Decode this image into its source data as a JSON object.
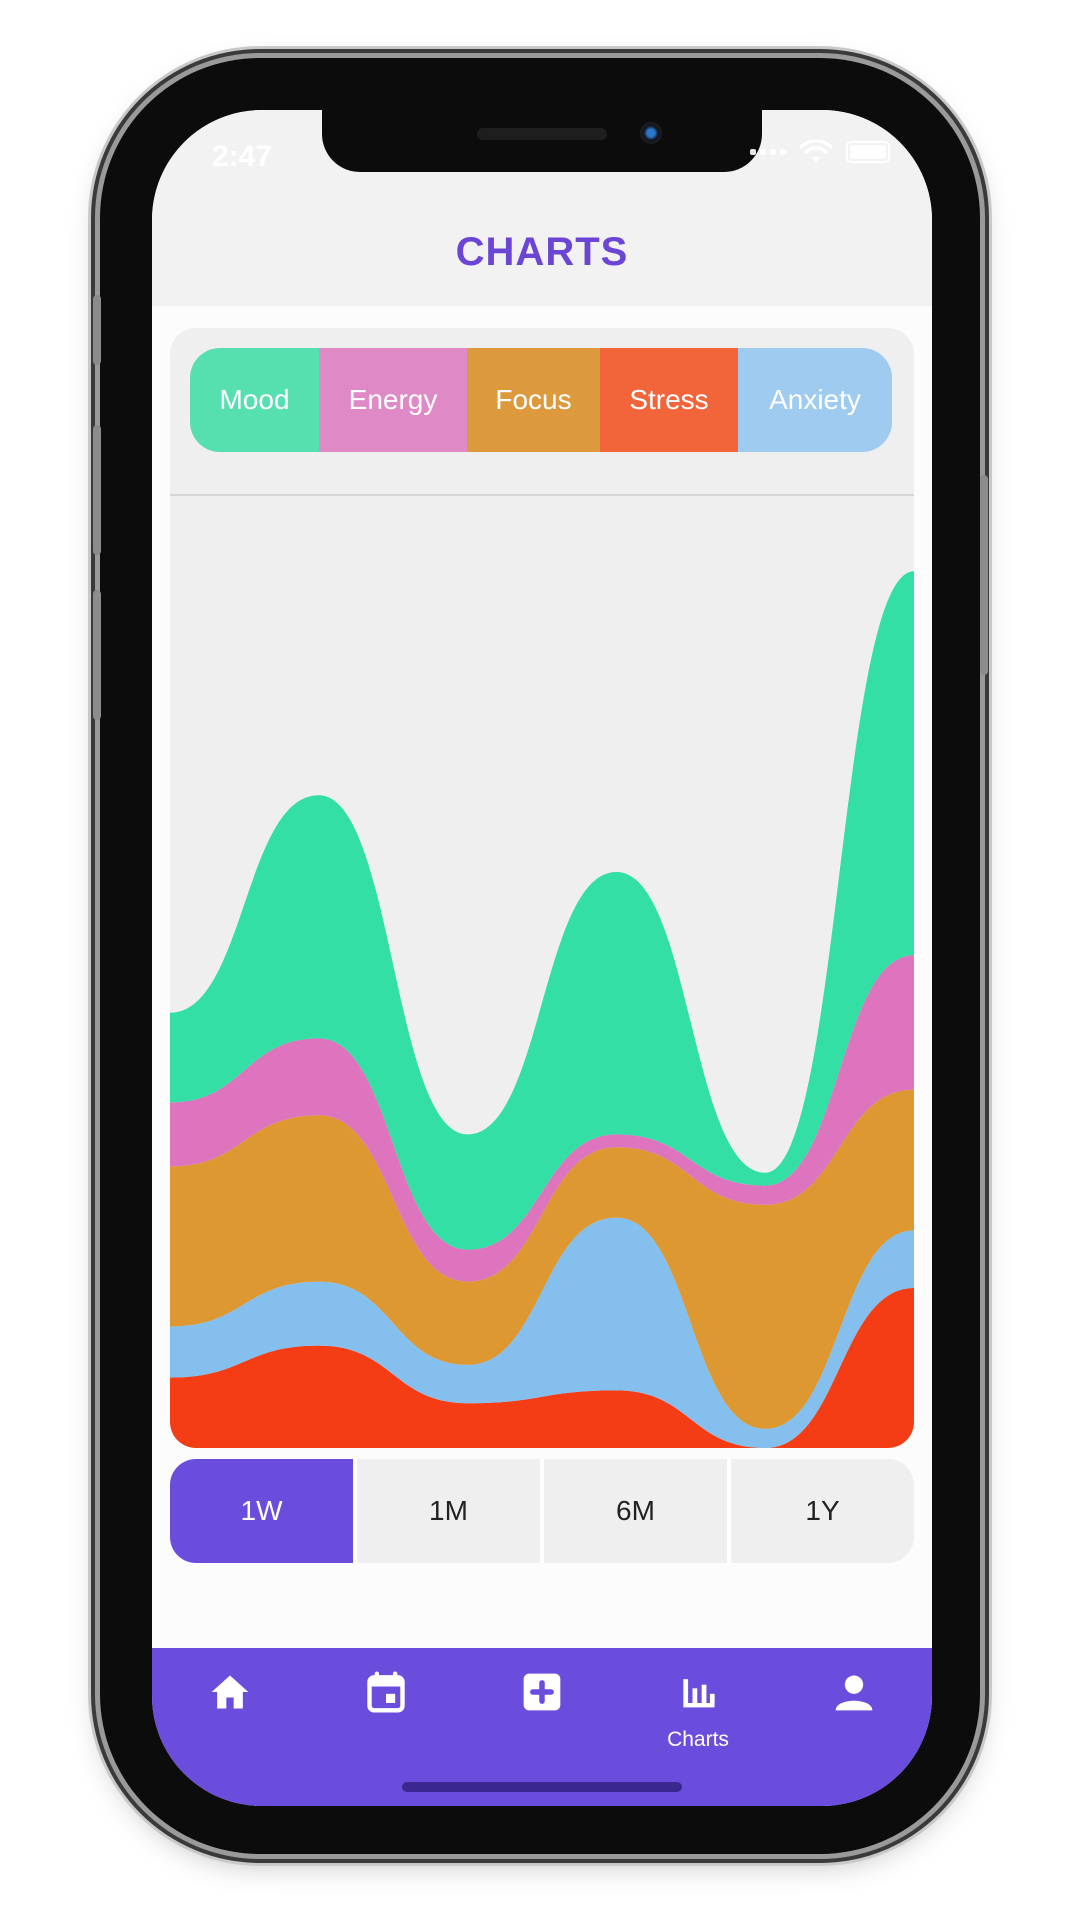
{
  "status_bar": {
    "time": "2:47"
  },
  "header": {
    "title": "CHARTS"
  },
  "legend": [
    {
      "label": "Mood",
      "color": "#56e0b0"
    },
    {
      "label": "Energy",
      "color": "#df8ac6"
    },
    {
      "label": "Focus",
      "color": "#dd9a3c"
    },
    {
      "label": "Stress",
      "color": "#f2643a"
    },
    {
      "label": "Anxiety",
      "color": "#9ecbef"
    }
  ],
  "chart_data": {
    "type": "area",
    "stacked": true,
    "points": 6,
    "series": [
      {
        "name": "Mood",
        "color": "#33dfa4",
        "values": [
          1.4,
          3.8,
          1.8,
          4.1,
          0.2,
          6.0
        ]
      },
      {
        "name": "Energy",
        "color": "#dd74bd",
        "values": [
          1.0,
          1.2,
          0.5,
          0.2,
          0.3,
          2.1
        ]
      },
      {
        "name": "Focus",
        "color": "#dd9832",
        "values": [
          2.5,
          2.6,
          1.3,
          1.1,
          3.5,
          2.2
        ]
      },
      {
        "name": "Anxiety",
        "color": "#84bfee",
        "values": [
          0.8,
          1.0,
          0.6,
          2.7,
          0.3,
          0.9
        ]
      },
      {
        "name": "Stress",
        "color": "#f43d14",
        "values": [
          1.1,
          1.6,
          0.7,
          0.9,
          0.0,
          2.5
        ]
      }
    ],
    "grid": false,
    "legend_position": "top"
  },
  "periods": [
    {
      "label": "1W",
      "active": true
    },
    {
      "label": "1M",
      "active": false
    },
    {
      "label": "6M",
      "active": false
    },
    {
      "label": "1Y",
      "active": false
    }
  ],
  "tabbar": {
    "items": [
      {
        "icon": "home-icon",
        "label": ""
      },
      {
        "icon": "calendar-icon",
        "label": ""
      },
      {
        "icon": "add-icon",
        "label": ""
      },
      {
        "icon": "bar-chart-icon",
        "label": "Charts"
      },
      {
        "icon": "profile-icon",
        "label": ""
      }
    ],
    "active_color": "#6b4ddd"
  }
}
